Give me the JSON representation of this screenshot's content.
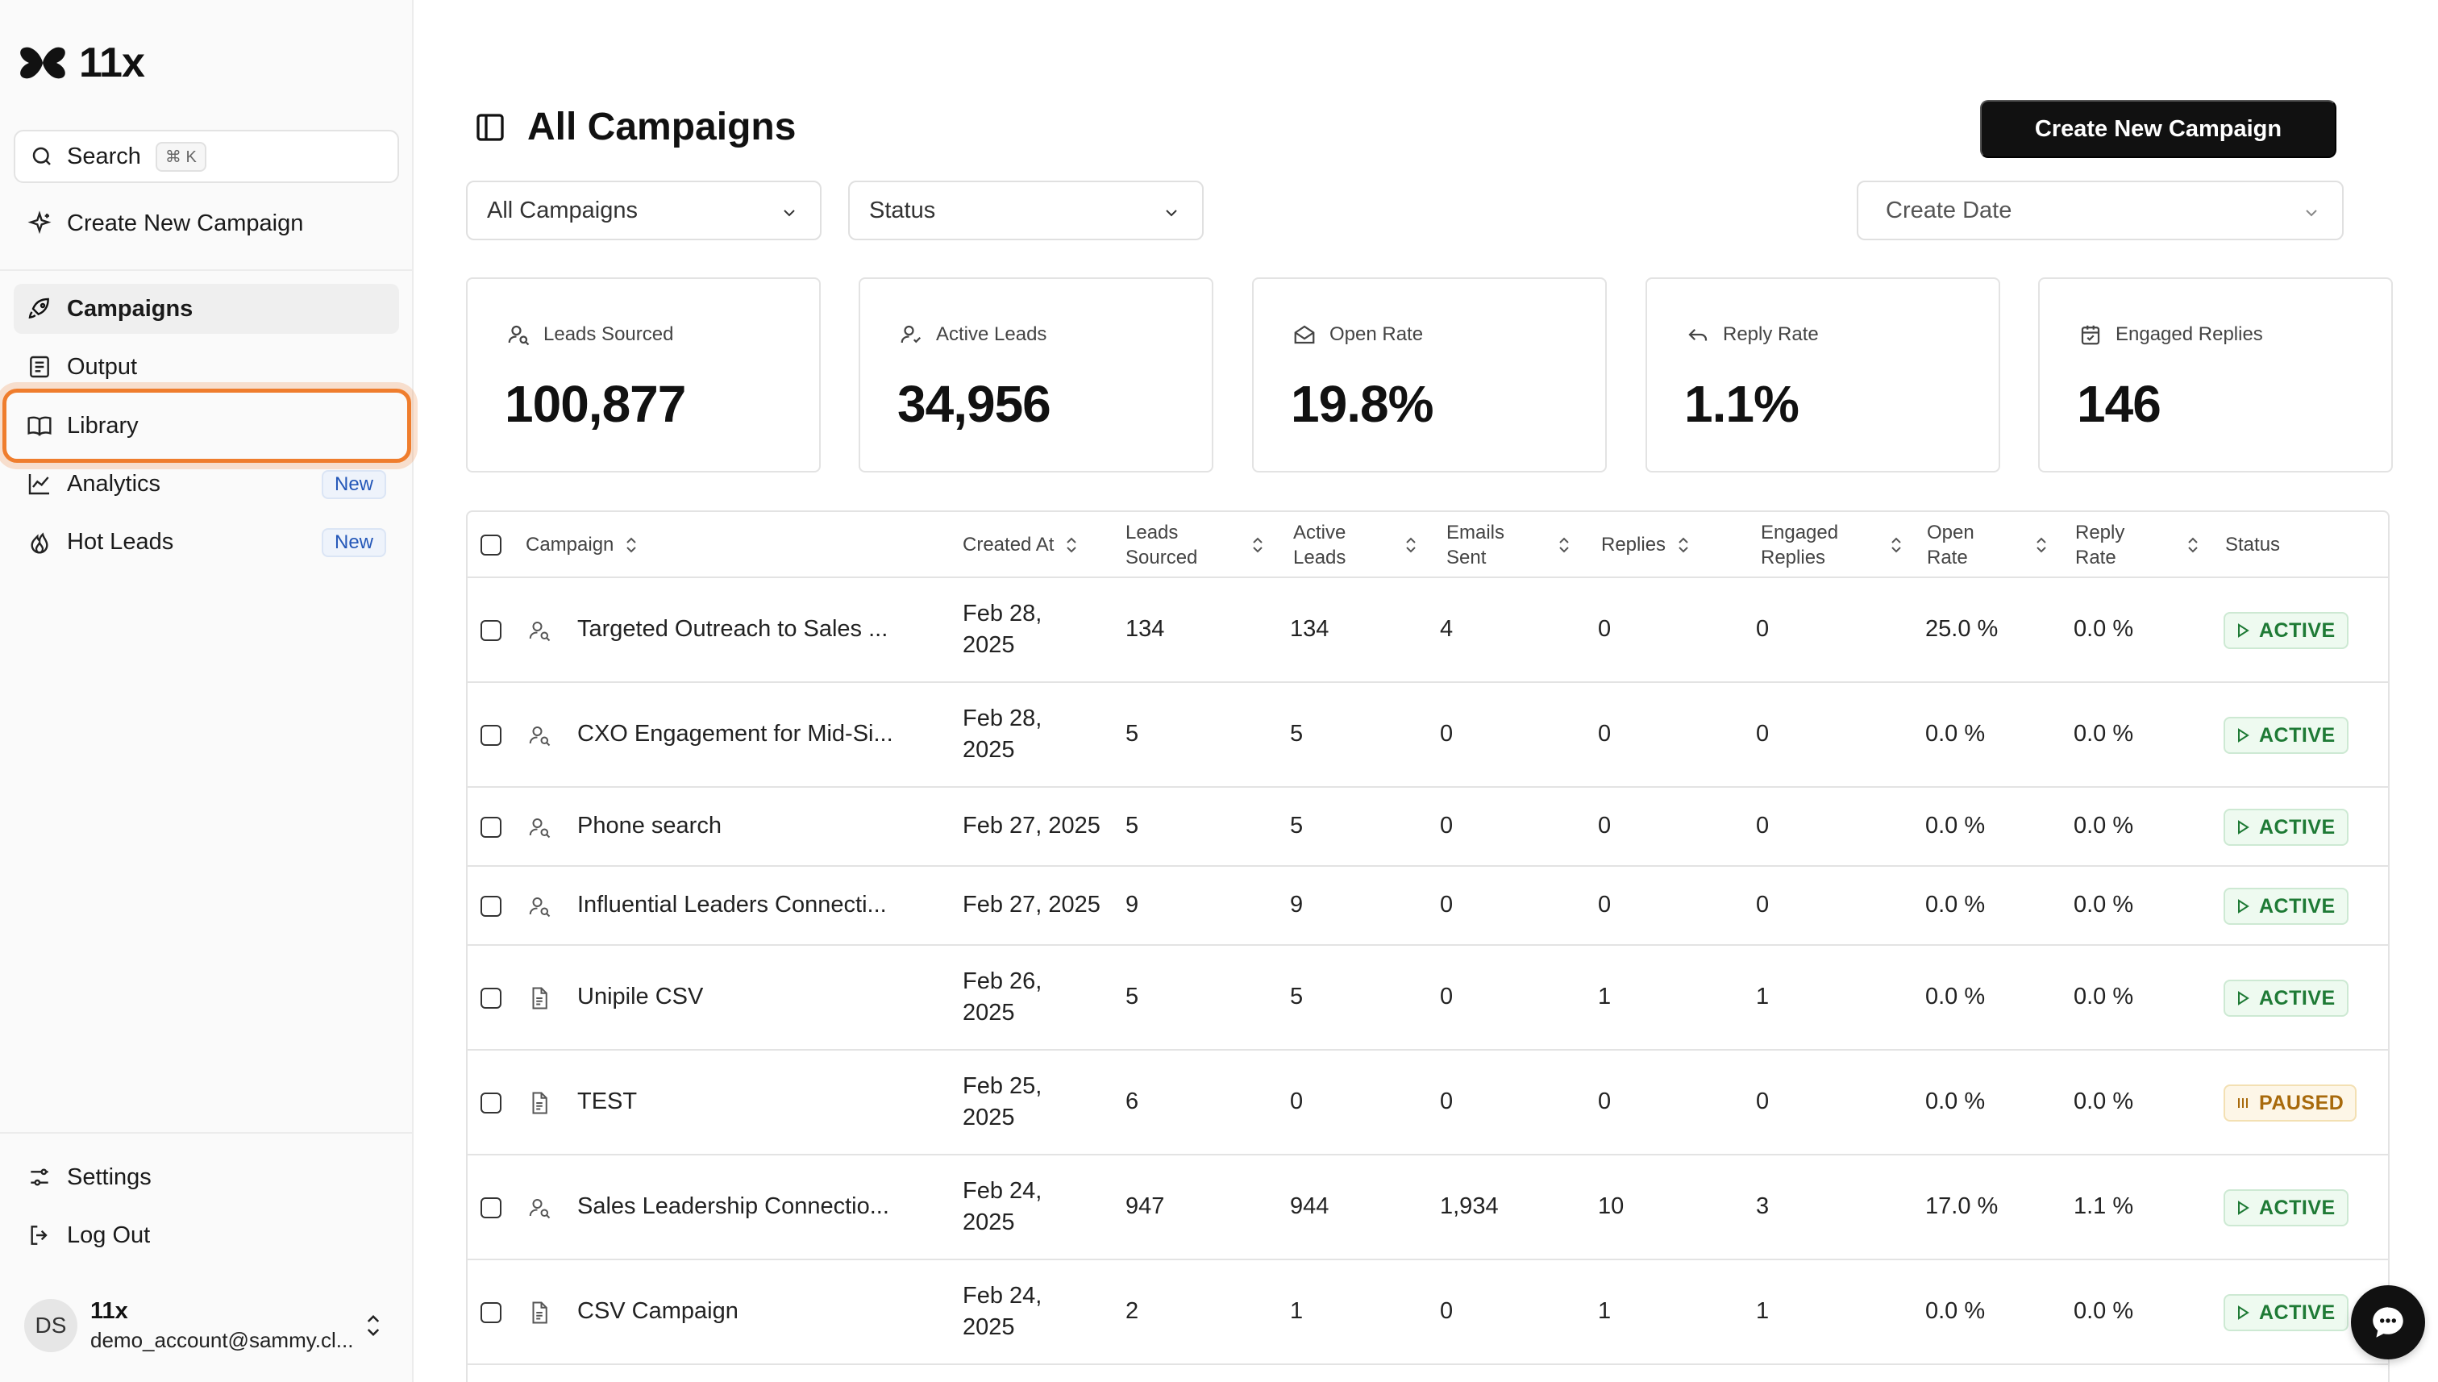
{
  "app": {
    "logo_text": "11x"
  },
  "sidebar": {
    "search_label": "Search",
    "search_shortcut": "⌘ K",
    "create_label": "Create New Campaign",
    "nav": [
      {
        "label": "Campaigns",
        "icon": "rocket-icon",
        "badge": ""
      },
      {
        "label": "Output",
        "icon": "document-list-icon",
        "badge": ""
      },
      {
        "label": "Library",
        "icon": "book-icon",
        "badge": ""
      },
      {
        "label": "Analytics",
        "icon": "chart-line-icon",
        "badge": "New"
      },
      {
        "label": "Hot Leads",
        "icon": "flame-icon",
        "badge": "New"
      }
    ],
    "settings_label": "Settings",
    "logout_label": "Log Out",
    "user": {
      "initials": "DS",
      "name": "11x",
      "email": "demo_account@sammy.cl..."
    }
  },
  "header": {
    "title": "All Campaigns",
    "create_button": "Create New Campaign",
    "filters": {
      "campaigns": "All Campaigns",
      "status": "Status",
      "date": "Create Date"
    }
  },
  "stats": [
    {
      "label": "Leads Sourced",
      "value": "100,877",
      "icon": "user-search-icon"
    },
    {
      "label": "Active Leads",
      "value": "34,956",
      "icon": "user-check-icon"
    },
    {
      "label": "Open Rate",
      "value": "19.8%",
      "icon": "mail-open-icon"
    },
    {
      "label": "Reply Rate",
      "value": "1.1%",
      "icon": "reply-icon"
    },
    {
      "label": "Engaged Replies",
      "value": "146",
      "icon": "calendar-check-icon"
    }
  ],
  "table": {
    "headers": {
      "campaign": "Campaign",
      "created_at": "Created At",
      "leads_sourced_1": "Leads",
      "leads_sourced_2": "Sourced",
      "active_leads_1": "Active",
      "active_leads_2": "Leads",
      "emails_sent_1": "Emails",
      "emails_sent_2": "Sent",
      "replies": "Replies",
      "engaged_1": "Engaged",
      "engaged_2": "Replies",
      "open_rate_1": "Open",
      "open_rate_2": "Rate",
      "reply_rate_1": "Reply",
      "reply_rate_2": "Rate",
      "status": "Status"
    },
    "rows": [
      {
        "name": "Targeted Outreach to Sales ...",
        "type": "user-search-icon",
        "created_1": "Feb 28,",
        "created_2": "2025",
        "leads": "134",
        "active": "134",
        "emails": "4",
        "replies": "0",
        "engaged": "0",
        "open_rate": "25.0 %",
        "reply_rate": "0.0 %",
        "status": "ACTIVE"
      },
      {
        "name": "CXO Engagement for Mid-Si...",
        "type": "user-search-icon",
        "created_1": "Feb 28,",
        "created_2": "2025",
        "leads": "5",
        "active": "5",
        "emails": "0",
        "replies": "0",
        "engaged": "0",
        "open_rate": "0.0 %",
        "reply_rate": "0.0 %",
        "status": "ACTIVE"
      },
      {
        "name": "Phone search",
        "type": "user-search-icon",
        "created_1": "Feb 27, 2025",
        "created_2": "",
        "leads": "5",
        "active": "5",
        "emails": "0",
        "replies": "0",
        "engaged": "0",
        "open_rate": "0.0 %",
        "reply_rate": "0.0 %",
        "status": "ACTIVE"
      },
      {
        "name": "Influential Leaders Connecti...",
        "type": "user-search-icon",
        "created_1": "Feb 27, 2025",
        "created_2": "",
        "leads": "9",
        "active": "9",
        "emails": "0",
        "replies": "0",
        "engaged": "0",
        "open_rate": "0.0 %",
        "reply_rate": "0.0 %",
        "status": "ACTIVE"
      },
      {
        "name": "Unipile CSV",
        "type": "file-csv-icon",
        "created_1": "Feb 26,",
        "created_2": "2025",
        "leads": "5",
        "active": "5",
        "emails": "0",
        "replies": "1",
        "engaged": "1",
        "open_rate": "0.0 %",
        "reply_rate": "0.0 %",
        "status": "ACTIVE"
      },
      {
        "name": "TEST",
        "type": "file-csv-icon",
        "created_1": "Feb 25,",
        "created_2": "2025",
        "leads": "6",
        "active": "0",
        "emails": "0",
        "replies": "0",
        "engaged": "0",
        "open_rate": "0.0 %",
        "reply_rate": "0.0 %",
        "status": "PAUSED"
      },
      {
        "name": "Sales Leadership Connectio...",
        "type": "user-search-icon",
        "created_1": "Feb 24,",
        "created_2": "2025",
        "leads": "947",
        "active": "944",
        "emails": "1,934",
        "replies": "10",
        "engaged": "3",
        "open_rate": "17.0 %",
        "reply_rate": "1.1 %",
        "status": "ACTIVE"
      },
      {
        "name": "CSV Campaign",
        "type": "file-csv-icon",
        "created_1": "Feb 24,",
        "created_2": "2025",
        "leads": "2",
        "active": "1",
        "emails": "0",
        "replies": "1",
        "engaged": "1",
        "open_rate": "0.0 %",
        "reply_rate": "0.0 %",
        "status": "ACTIVE"
      }
    ]
  },
  "colors": {
    "accent": "#111111",
    "highlight": "#ef7d2d",
    "active": "#1e7a35",
    "paused": "#a86a0c",
    "badge": "#2457b8"
  }
}
